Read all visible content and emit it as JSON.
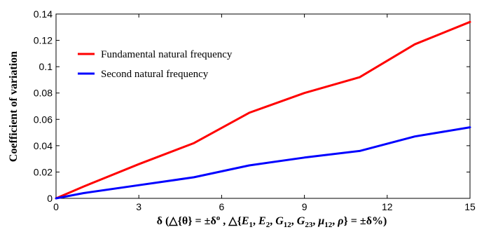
{
  "chart_data": {
    "type": "line",
    "title": "",
    "xlabel": "δ (△{θ} = ±δ°, △{E1, E2, G12, G23, μ12, ρ} = ±δ%)",
    "xlabel_parts": {
      "p1": "δ (△{θ} = ±δ",
      "deg": "o",
      "p2": " , △{",
      "E": "E",
      "E1": "1",
      "c1": ", ",
      "E2": "2",
      "c2": ", ",
      "G": "G",
      "G12": "12",
      "c3": ", ",
      "G23": "23",
      "c4": ", ",
      "mu": "μ",
      "mu12": "12",
      "c5": ", ",
      "rho": "ρ",
      "p3": "} = ±δ%)"
    },
    "ylabel": "Coefficient of variation",
    "xlim": [
      0,
      15
    ],
    "ylim": [
      0,
      0.14
    ],
    "xticks": [
      0,
      3,
      6,
      9,
      12,
      15
    ],
    "xtick_labels": [
      "0",
      "3",
      "6",
      "9",
      "12",
      "15"
    ],
    "yticks": [
      0,
      0.02,
      0.04,
      0.06,
      0.08,
      0.1,
      0.12,
      0.14
    ],
    "ytick_labels": [
      "0",
      "0.02",
      "0.04",
      "0.06",
      "0.08",
      "0.1",
      "0.12",
      "0.14"
    ],
    "grid": false,
    "legend_position": "top-left",
    "series": [
      {
        "name": "Fundamental natural frequency",
        "color": "#ff0000",
        "x": [
          0,
          1,
          3,
          5,
          7,
          9,
          11,
          13,
          15
        ],
        "y": [
          0,
          0.009,
          0.026,
          0.042,
          0.065,
          0.08,
          0.092,
          0.117,
          0.134
        ]
      },
      {
        "name": "Second natural frequency",
        "color": "#0000ff",
        "x": [
          0,
          1,
          3,
          5,
          7,
          9,
          11,
          13,
          15
        ],
        "y": [
          0,
          0.004,
          0.01,
          0.016,
          0.025,
          0.031,
          0.036,
          0.047,
          0.054
        ]
      }
    ]
  }
}
